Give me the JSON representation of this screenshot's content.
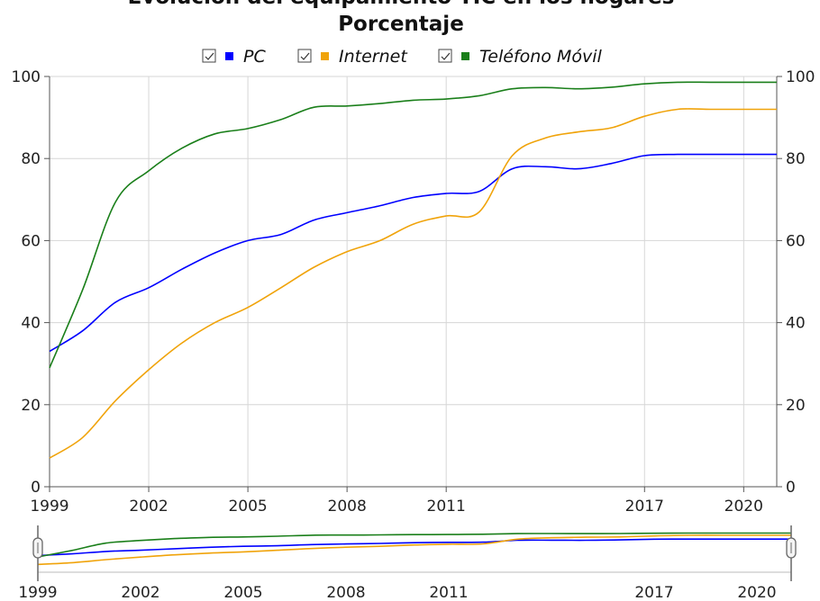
{
  "chart_data": {
    "type": "line",
    "title_line1": "Evolución del equipamiento TIC en los hogares",
    "title_line2": "Porcentaje",
    "x": [
      1999,
      2000,
      2001,
      2002,
      2003,
      2004,
      2005,
      2006,
      2007,
      2008,
      2009,
      2010,
      2011,
      2012,
      2013,
      2014,
      2015,
      2016,
      2017,
      2018,
      2019,
      2020,
      2021
    ],
    "x_ticks": [
      "1999",
      "2002",
      "2005",
      "2008",
      "2011",
      "2017",
      "2020"
    ],
    "y_ticks": [
      "0",
      "20",
      "40",
      "60",
      "80",
      "100"
    ],
    "ylim": [
      0,
      100
    ],
    "grid": true,
    "legend_position": "top-center",
    "series": [
      {
        "name": "PC",
        "color": "#0000ff",
        "values": [
          33,
          38,
          45,
          48.5,
          53,
          57,
          60,
          61.5,
          65,
          66.8,
          68.5,
          70.5,
          71.5,
          72,
          77.5,
          78,
          77.5,
          78.8,
          80.7,
          81,
          81,
          81,
          81
        ]
      },
      {
        "name": "Internet",
        "color": "#f0a30a",
        "values": [
          7,
          12,
          21,
          28.5,
          35,
          40,
          43.7,
          48.5,
          53.5,
          57.3,
          60,
          64,
          66,
          67,
          80.7,
          85,
          86.5,
          87.5,
          90.3,
          92,
          92,
          92,
          92
        ]
      },
      {
        "name": "Teléfono Móvil",
        "color": "#1a7f1a",
        "values": [
          29,
          48,
          69.5,
          77,
          82.5,
          86,
          87.3,
          89.5,
          92.5,
          92.8,
          93.4,
          94.2,
          94.5,
          95.3,
          97,
          97.3,
          97,
          97.4,
          98.2,
          98.6,
          98.6,
          98.6,
          98.6
        ]
      }
    ]
  }
}
